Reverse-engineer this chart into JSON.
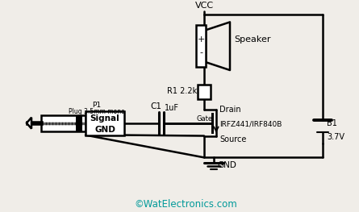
{
  "bg_color": "#f0ede8",
  "line_color": "#000000",
  "text_color": "#000000",
  "cyan_color": "#009999",
  "watermark": "©WatElectronics.com",
  "labels": {
    "vcc": "VCC",
    "speaker": "Speaker",
    "r1": "R1 2.2k",
    "c1": "C1",
    "c1b": "1uF",
    "gate": "Gate",
    "drain": "Drain",
    "source": "Source",
    "gnd": "GND",
    "mosfet": "IRFZ441/IRF840B",
    "battery": "B1",
    "battery_v": "3.7V",
    "p1": "P1",
    "plug": "Plug 3.5mm mono",
    "signal": "Signal",
    "signal_gnd": "GND"
  }
}
